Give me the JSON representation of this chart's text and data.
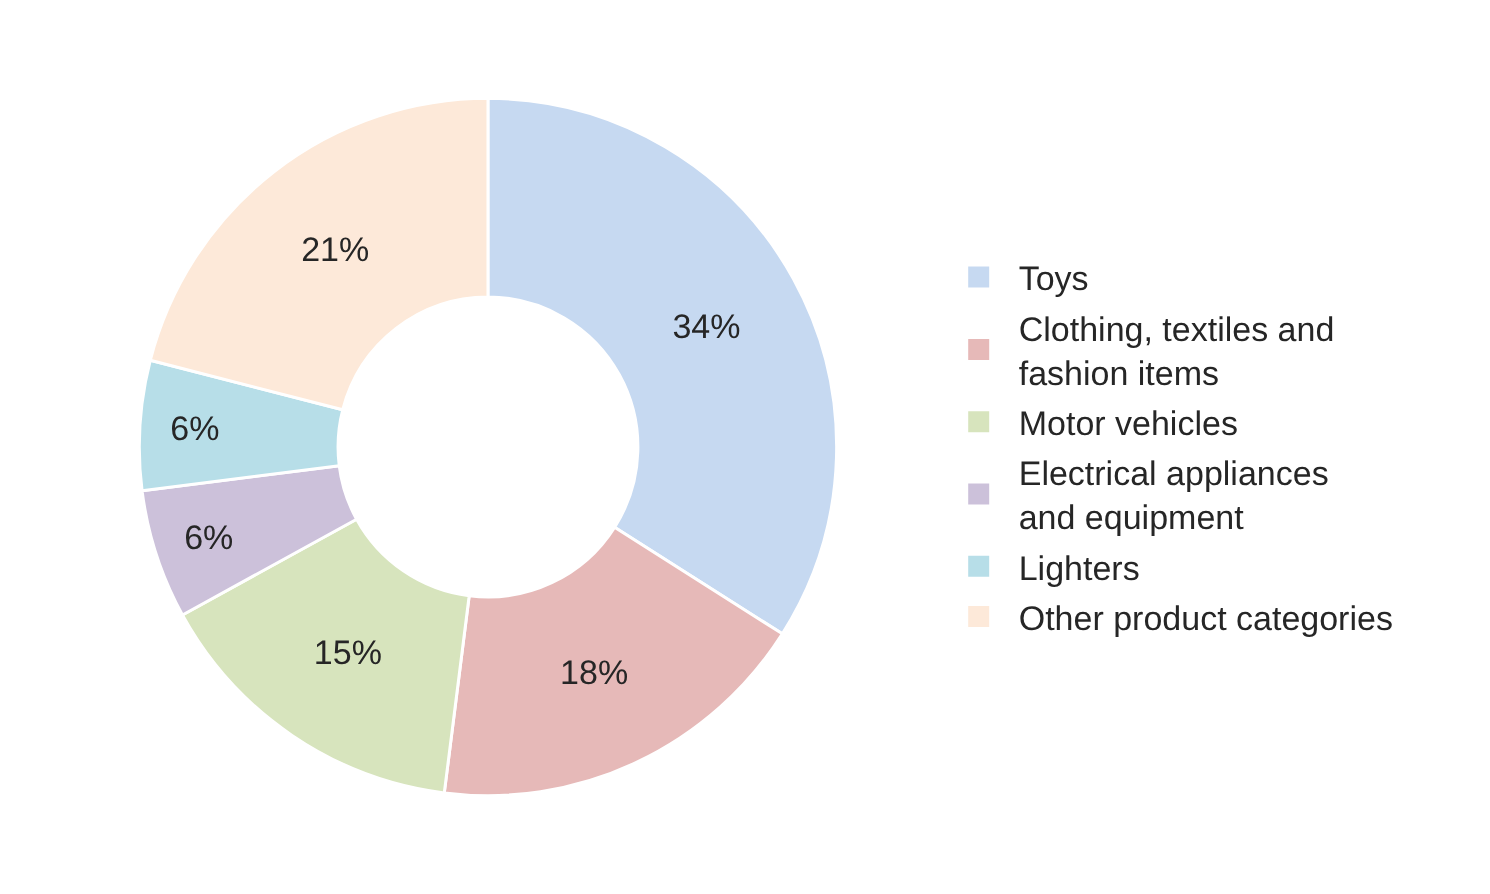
{
  "chart_data": {
    "type": "donut",
    "categories": [
      "Toys",
      "Clothing, textiles and fashion items",
      "Motor vehicles",
      "Electrical appliances and equipment",
      "Lighters",
      "Other product categories"
    ],
    "values": [
      34,
      18,
      15,
      6,
      6,
      21
    ],
    "value_labels": [
      "34%",
      "18%",
      "15%",
      "6%",
      "6%",
      "21%"
    ],
    "colors": [
      "#c6d9f1",
      "#e6b9b8",
      "#d7e4bd",
      "#ccc1da",
      "#b7dee8",
      "#fde9d9"
    ],
    "legend": "right"
  }
}
